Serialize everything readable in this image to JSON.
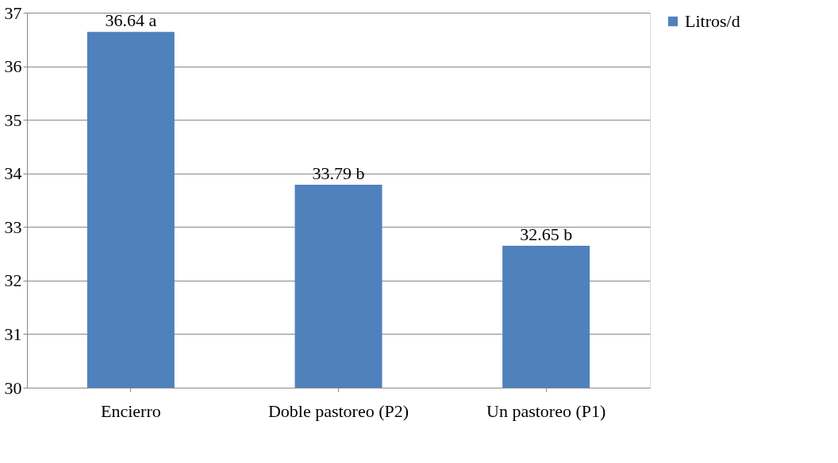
{
  "chart_data": {
    "type": "bar",
    "categories": [
      "Encierro",
      "Doble pastoreo (P2)",
      "Un pastoreo (P1)"
    ],
    "series": [
      {
        "name": "Litros/d",
        "color": "#4f81bd",
        "values": [
          36.64,
          33.79,
          32.65
        ]
      }
    ],
    "value_labels": [
      "36.64  a",
      "33.79   b",
      "32.65  b"
    ],
    "ylim": [
      30,
      37
    ],
    "yticks": [
      30,
      31,
      32,
      33,
      34,
      35,
      36,
      37
    ],
    "grid": "y",
    "legend": "right"
  }
}
